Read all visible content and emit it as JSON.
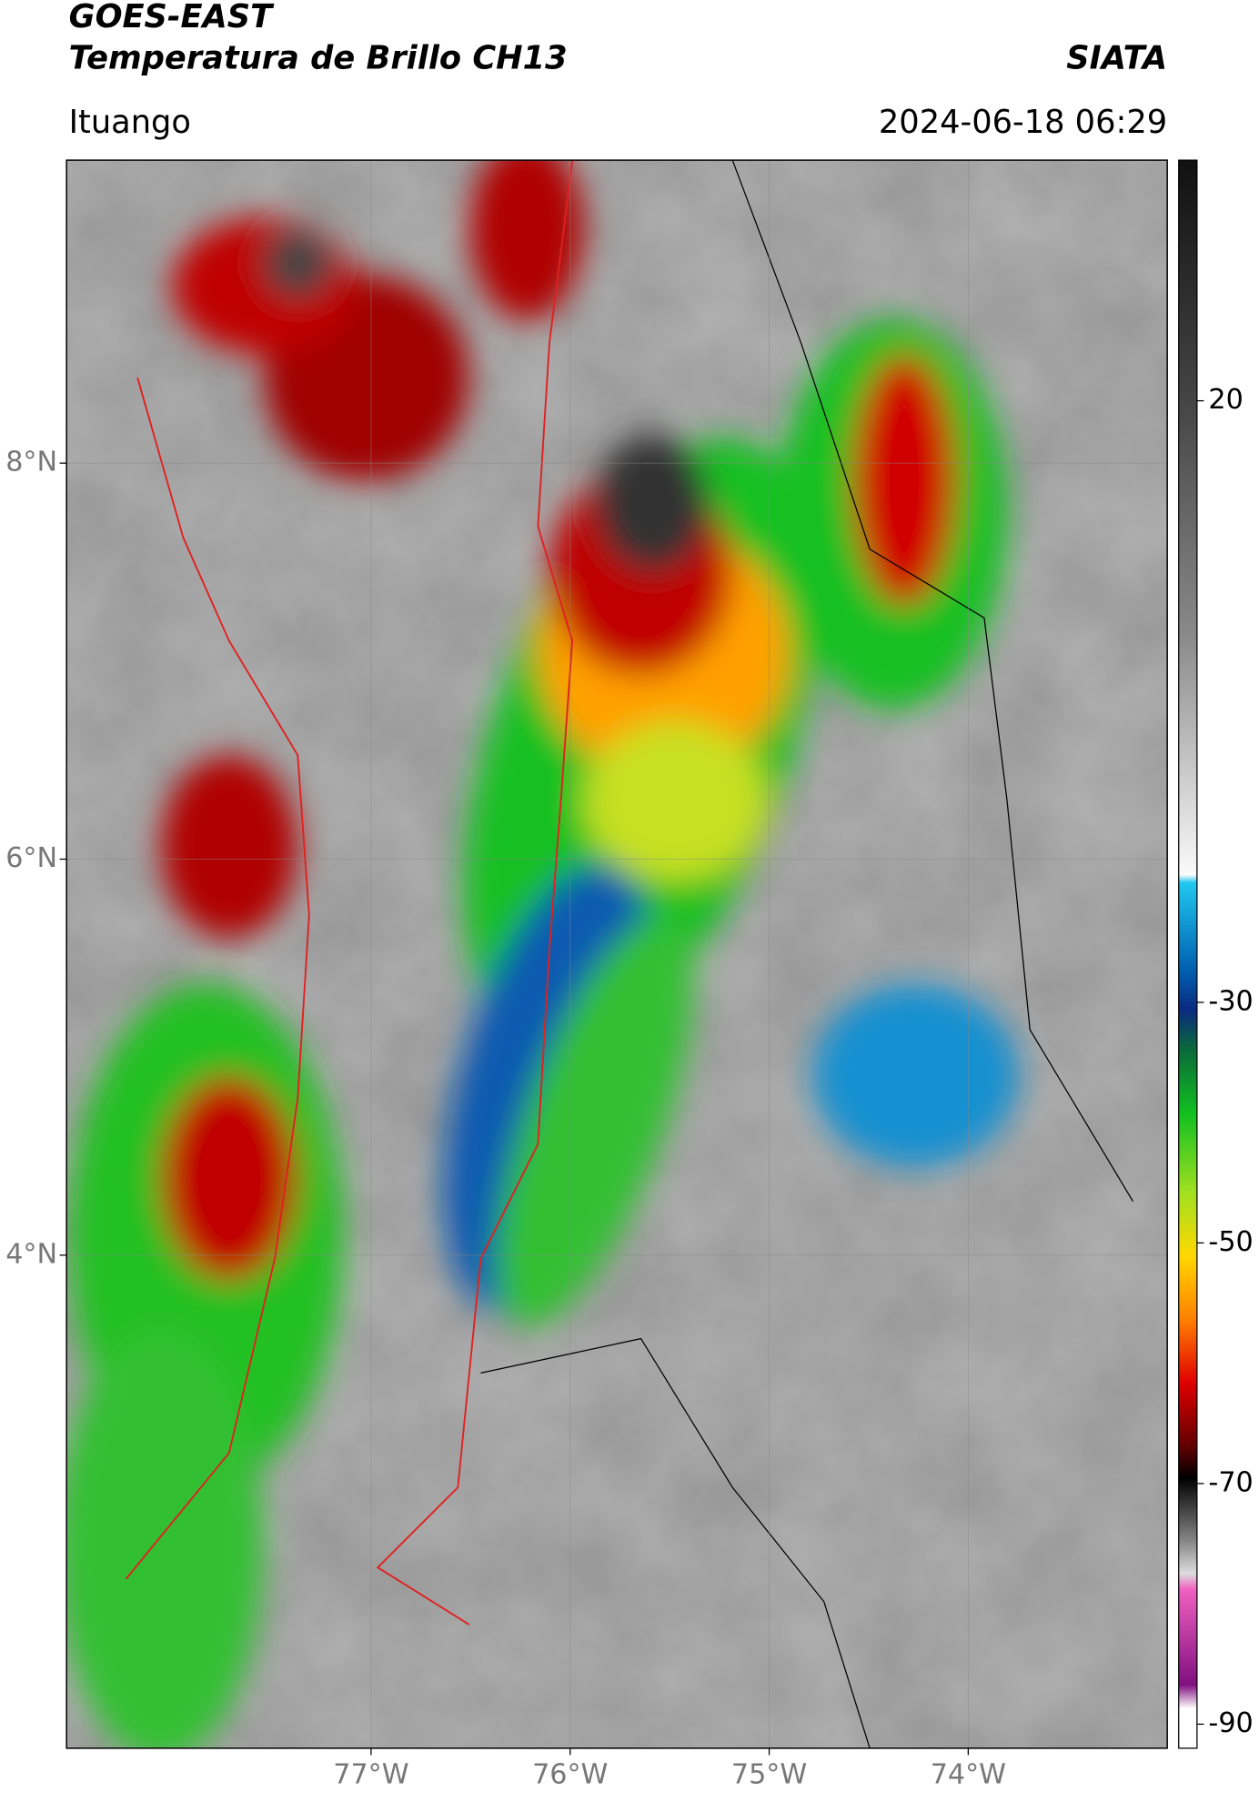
{
  "header": {
    "title": "GOES-EAST",
    "subtitle": "Temperatura de Brillo CH13",
    "brand": "SIATA",
    "location": "Ituango",
    "datetime": "2024-06-18 06:29"
  },
  "map": {
    "xlim": [
      -78.53,
      -73.0
    ],
    "ylim": [
      1.51,
      9.53
    ],
    "xticks": [
      {
        "value": -77,
        "label": "77°W"
      },
      {
        "value": -76,
        "label": "76°W"
      },
      {
        "value": -75,
        "label": "75°W"
      },
      {
        "value": -74,
        "label": "74°W"
      }
    ],
    "yticks": [
      {
        "value": 8,
        "label": "8°N"
      },
      {
        "value": 6,
        "label": "6°N"
      },
      {
        "value": 4,
        "label": "4°N"
      }
    ],
    "grid": true
  },
  "colorbar": {
    "lim": [
      -92,
      40
    ],
    "ticks": [
      20,
      -30,
      -50,
      -70,
      -90
    ]
  }
}
